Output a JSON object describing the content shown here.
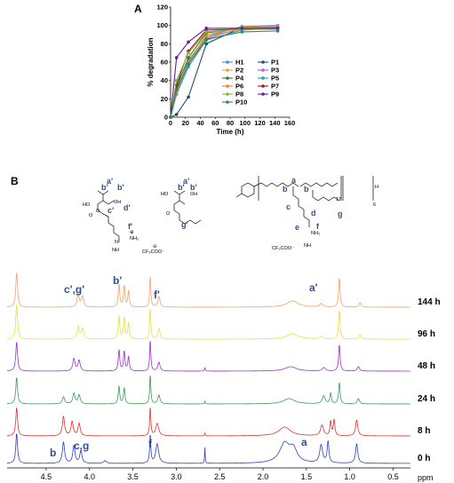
{
  "panelA": {
    "label": "A",
    "chart_data": {
      "type": "line",
      "xlabel": "Time (h)",
      "ylabel": "% degradation",
      "xlim": [
        0,
        160
      ],
      "ylim": [
        0,
        120
      ],
      "xticks": [
        0,
        20,
        40,
        60,
        80,
        100,
        120,
        140,
        160
      ],
      "yticks": [
        0,
        20,
        40,
        60,
        80,
        100,
        120
      ],
      "x": [
        0,
        8,
        24,
        48,
        96,
        144
      ],
      "legend_position": "bottom-right",
      "series": [
        {
          "name": "H1",
          "color": "#4a90c8",
          "values": [
            0,
            35,
            62,
            88,
            99,
            100
          ]
        },
        {
          "name": "P1",
          "color": "#1f4e79",
          "values": [
            0,
            3,
            22,
            80,
            98,
            99
          ]
        },
        {
          "name": "P2",
          "color": "#f0a030",
          "values": [
            0,
            30,
            60,
            90,
            98,
            99
          ]
        },
        {
          "name": "P3",
          "color": "#c060c0",
          "values": [
            0,
            28,
            58,
            86,
            97,
            98
          ]
        },
        {
          "name": "P4",
          "color": "#2e7d32",
          "values": [
            0,
            32,
            65,
            92,
            97,
            97
          ]
        },
        {
          "name": "P5",
          "color": "#20a0b0",
          "values": [
            0,
            25,
            55,
            84,
            95,
            97
          ]
        },
        {
          "name": "P6",
          "color": "#f08030",
          "values": [
            0,
            27,
            60,
            88,
            96,
            96
          ]
        },
        {
          "name": "P7",
          "color": "#a01818",
          "values": [
            0,
            35,
            72,
            95,
            96,
            96
          ]
        },
        {
          "name": "P8",
          "color": "#7cb342",
          "values": [
            0,
            40,
            70,
            93,
            96,
            96
          ]
        },
        {
          "name": "P9",
          "color": "#6a1b9a",
          "values": [
            0,
            65,
            82,
            97,
            97,
            97
          ]
        },
        {
          "name": "P10",
          "color": "#2e8b57",
          "values": [
            0,
            30,
            58,
            85,
            93,
            94
          ]
        }
      ]
    }
  },
  "panelB": {
    "label": "B",
    "structures": {
      "mol1_labels": [
        "b'",
        "a'",
        "b'",
        "c'",
        "d'",
        "f'"
      ],
      "mol2_labels": [
        "b'",
        "a'",
        "b'",
        "g'"
      ],
      "mol3_labels": [
        "b",
        "a",
        "b",
        "c",
        "d",
        "e",
        "f",
        "g"
      ],
      "mol3_subscripts": [
        "17",
        "6"
      ],
      "counterion": "CF₃COO⁻",
      "amine": "NH₂",
      "imine_n": "N",
      "nh": "NH",
      "ho": "HO",
      "oh": "OH",
      "o": "O",
      "h": "H",
      "plus": "⊕",
      "minus": "⊖"
    },
    "spectra": {
      "x_unit": "ppm",
      "ticks": [
        "4.5",
        "4.0",
        "3.5",
        "3.0",
        "2.5",
        "2.0",
        "1.5",
        "1.0",
        "0.5"
      ],
      "traces": [
        {
          "time": "144 h",
          "color": "#f4a06a"
        },
        {
          "time": "96 h",
          "color": "#e8e040"
        },
        {
          "time": "48 h",
          "color": "#9b30c8"
        },
        {
          "time": "24 h",
          "color": "#3a9a5a"
        },
        {
          "time": "8 h",
          "color": "#e03030"
        },
        {
          "time": "0 h",
          "color": "#2a3fc0"
        }
      ],
      "top_labels": {
        "cg_prime": "c',g'",
        "b_prime": "b'",
        "f_prime": "f'",
        "a_prime": "a'"
      },
      "bottom_labels": {
        "b": "b",
        "cg": "c,g",
        "f": "f",
        "a": "a"
      }
    }
  }
}
